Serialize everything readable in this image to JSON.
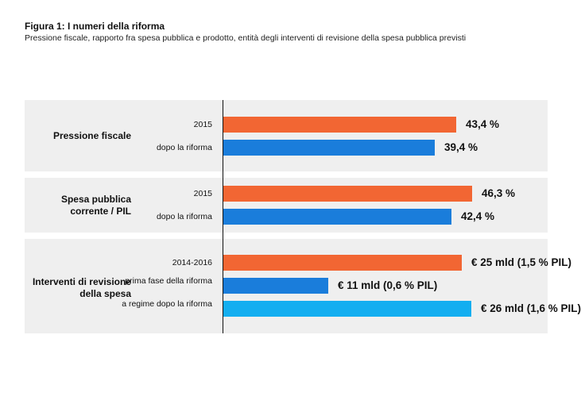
{
  "title": "Figura 1: I numeri della riforma",
  "subtitle": "Pressione fiscale, rapporto fra spesa pubblica e prodotto, entità degli interventi di revisione della spesa pubblica previsti",
  "colors": {
    "orange": "#f26633",
    "blue": "#1a7ddb",
    "light_blue": "#13aef0",
    "band": "#efefef"
  },
  "chart_data": {
    "type": "bar",
    "orientation": "horizontal",
    "title": "Figura 1: I numeri della riforma",
    "subtitle": "Pressione fiscale, rapporto fra spesa pubblica e prodotto, entità degli interventi di revisione della spesa pubblica previsti",
    "grid": false,
    "groups": [
      {
        "label": "Pressione fiscale",
        "scale_max": 57.7,
        "bars": [
          {
            "category": "2015",
            "value": 43.4,
            "label": "43,4 %",
            "color": "orange"
          },
          {
            "category": "dopo la riforma",
            "value": 39.4,
            "label": "39,4 %",
            "color": "blue"
          }
        ]
      },
      {
        "label": "Spesa pubblica corrente / PIL",
        "scale_max": 57.7,
        "bars": [
          {
            "category": "2015",
            "value": 46.3,
            "label": "46,3 %",
            "color": "orange"
          },
          {
            "category": "dopo la riforma",
            "value": 42.4,
            "label": "42,4 %",
            "color": "blue"
          }
        ]
      },
      {
        "label": "Interventi di revisione della spesa",
        "scale_max": 32.5,
        "bars": [
          {
            "category": "2014-2016",
            "value": 25,
            "label": "€ 25 mld (1,5 % PIL)",
            "color": "orange"
          },
          {
            "category": "prima fase della riforma",
            "value": 11,
            "label": "€ 11 mld (0,6 % PIL)",
            "color": "blue"
          },
          {
            "category": "a regime dopo la riforma",
            "value": 26,
            "label": "€ 26 mld (1,6 % PIL)",
            "color": "light_blue"
          }
        ]
      }
    ]
  }
}
